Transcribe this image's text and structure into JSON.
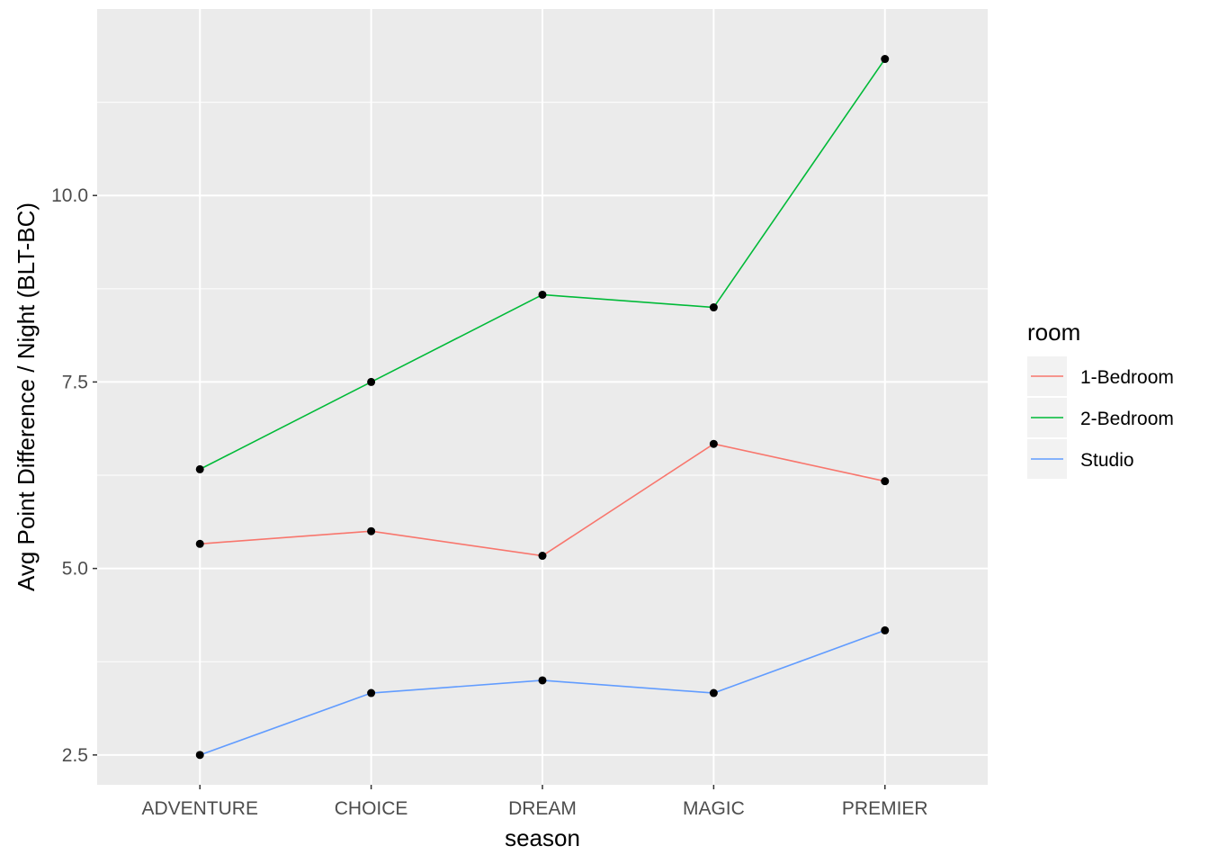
{
  "chart_data": {
    "type": "line",
    "xlabel": "season",
    "ylabel": "Avg Point Difference / Night  (BLT-BC)",
    "categories": [
      "ADVENTURE",
      "CHOICE",
      "DREAM",
      "MAGIC",
      "PREMIER"
    ],
    "ylim": [
      2.1,
      12.5
    ],
    "yticks": [
      2.5,
      5.0,
      7.5,
      10.0
    ],
    "ytick_labels": [
      "2.5",
      "5.0",
      "7.5",
      "10.0"
    ],
    "grid": true,
    "legend": {
      "title": "room",
      "position": "right"
    },
    "point_color": "#000000",
    "panel_background": "#ebebeb",
    "series": [
      {
        "name": "1-Bedroom",
        "color": "#F8766D",
        "values": [
          5.33,
          5.5,
          5.17,
          6.67,
          6.17
        ]
      },
      {
        "name": "2-Bedroom",
        "color": "#00BA38",
        "values": [
          6.33,
          7.5,
          8.67,
          8.5,
          11.83
        ]
      },
      {
        "name": "Studio",
        "color": "#619CFF",
        "values": [
          2.5,
          3.33,
          3.5,
          3.33,
          4.17
        ]
      }
    ]
  }
}
